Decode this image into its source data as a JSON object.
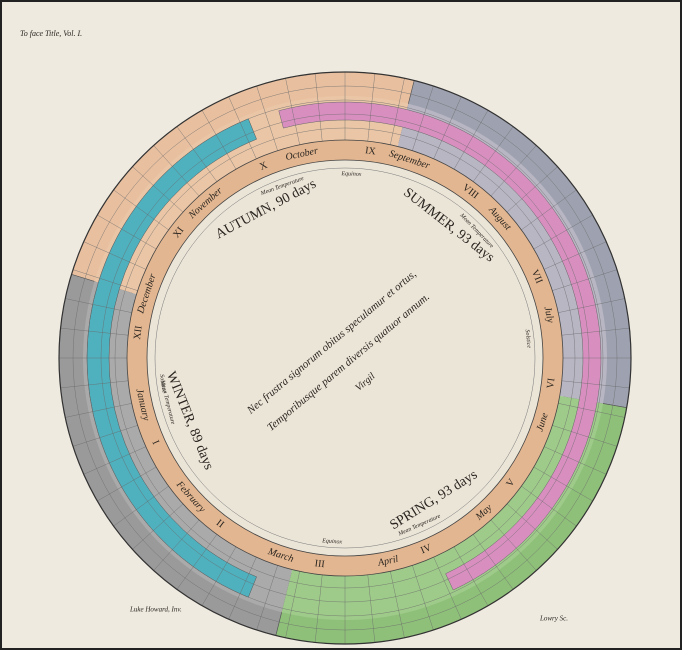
{
  "header": {
    "plate_note": "To face Title, Vol. I."
  },
  "seasons": [
    {
      "label": "AUTUMN, 90 days",
      "note": "Mean Temperature"
    },
    {
      "label": "SUMMER, 93 days",
      "note": "Mean Temperature"
    },
    {
      "label": "SPRING, 93 days",
      "note": "Mean Temperature"
    },
    {
      "label": "WINTER, 89 days",
      "note": "Mean Temperature"
    }
  ],
  "months": [
    {
      "numeral": "I",
      "name": "January"
    },
    {
      "numeral": "II",
      "name": "February"
    },
    {
      "numeral": "III",
      "name": "March"
    },
    {
      "numeral": "IV",
      "name": "April"
    },
    {
      "numeral": "V",
      "name": "May"
    },
    {
      "numeral": "VI",
      "name": "June"
    },
    {
      "numeral": "VII",
      "name": "July"
    },
    {
      "numeral": "VIII",
      "name": "August"
    },
    {
      "numeral": "IX",
      "name": "September"
    },
    {
      "numeral": "X",
      "name": "October"
    },
    {
      "numeral": "XI",
      "name": "November"
    },
    {
      "numeral": "XII",
      "name": "December"
    }
  ],
  "markers": [
    "Equinox",
    "Solstice",
    "Equinox",
    "Solstice"
  ],
  "inscription": [
    "Nec frustra signorum obitus speculamur et ortus,",
    "Temporibusque parem diversis quatuor annum.",
    "Virgil"
  ],
  "footer": {
    "inventor": "Luke Howard, Inv.",
    "engraver": "Lowry Sc."
  }
}
